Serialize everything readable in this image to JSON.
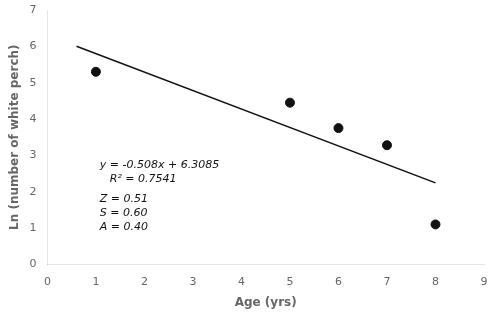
{
  "chart_data": {
    "type": "scatter",
    "xlabel": "Age (yrs)",
    "ylabel": "Ln (number of white perch)",
    "xlim": [
      0,
      9
    ],
    "ylim": [
      0,
      7
    ],
    "xticks": [
      0,
      1,
      2,
      3,
      4,
      5,
      6,
      7,
      8,
      9
    ],
    "yticks": [
      0,
      1,
      2,
      3,
      4,
      5,
      6,
      7
    ],
    "grid": false,
    "series": [
      {
        "type": "scatter",
        "x": [
          1,
          5,
          6,
          7,
          8
        ],
        "values": [
          5.3,
          4.45,
          3.75,
          3.28,
          1.1
        ],
        "color": "#111111"
      },
      {
        "type": "line",
        "x": [
          0.6,
          8.0
        ],
        "values": [
          6.0037,
          2.2445
        ],
        "color": "#111111"
      }
    ],
    "annotations": [
      "y = -0.508x + 6.3085",
      "R² = 0.7541",
      "Z = 0.51",
      "S = 0.60",
      "A = 0.40"
    ]
  }
}
